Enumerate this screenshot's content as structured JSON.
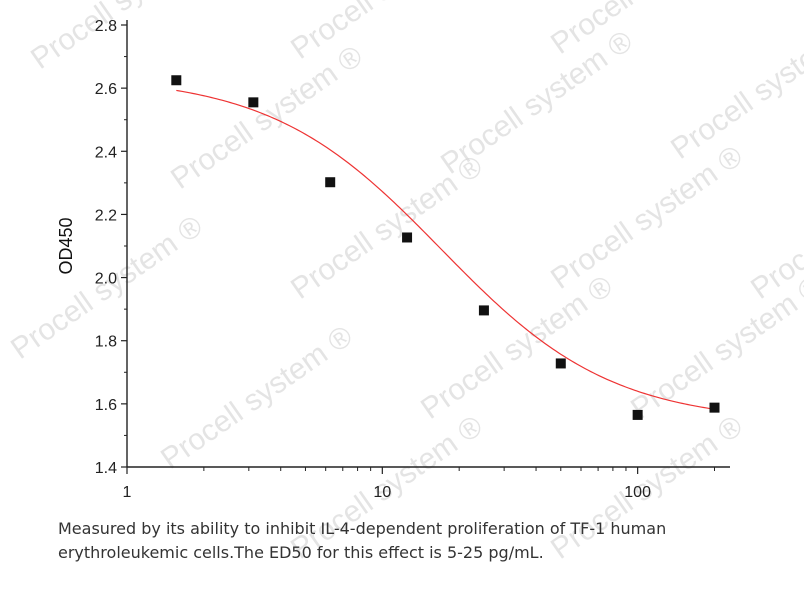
{
  "chart_data": {
    "type": "scatter",
    "xscale": "log",
    "xlim": [
      1,
      230
    ],
    "ylim": [
      1.4,
      2.8
    ],
    "xlabel": "",
    "ylabel": "OD450",
    "x_ticks": [
      1,
      10,
      100
    ],
    "x_tick_labels": [
      "1",
      "10",
      "100"
    ],
    "y_ticks": [
      1.4,
      1.6,
      1.8,
      2.0,
      2.2,
      2.4,
      2.6,
      2.8
    ],
    "y_tick_labels": [
      "1.4",
      "1.6",
      "1.8",
      "2.0",
      "2.2",
      "2.4",
      "2.6",
      "2.8"
    ],
    "series": [
      {
        "x": [
          1.56,
          3.125,
          6.25,
          12.5,
          25,
          50,
          100,
          200
        ],
        "y": [
          2.625,
          2.555,
          2.302,
          2.127,
          1.896,
          1.728,
          1.565,
          1.588
        ],
        "marker": "square",
        "color": "#111111"
      }
    ],
    "fit_curve": {
      "type": "4PL",
      "top": 2.64,
      "bottom": 1.54,
      "ec50": 17,
      "hill": 1.3,
      "x_range": [
        1.56,
        200
      ],
      "color": "#ee3333"
    },
    "grid": false
  },
  "caption": "Measured by its ability to inhibit IL-4-dependent proliferation of TF-1 human erythroleukemic cells.The ED50 for this effect is 5-25 pg/mL.",
  "watermark": "Procell system ®"
}
